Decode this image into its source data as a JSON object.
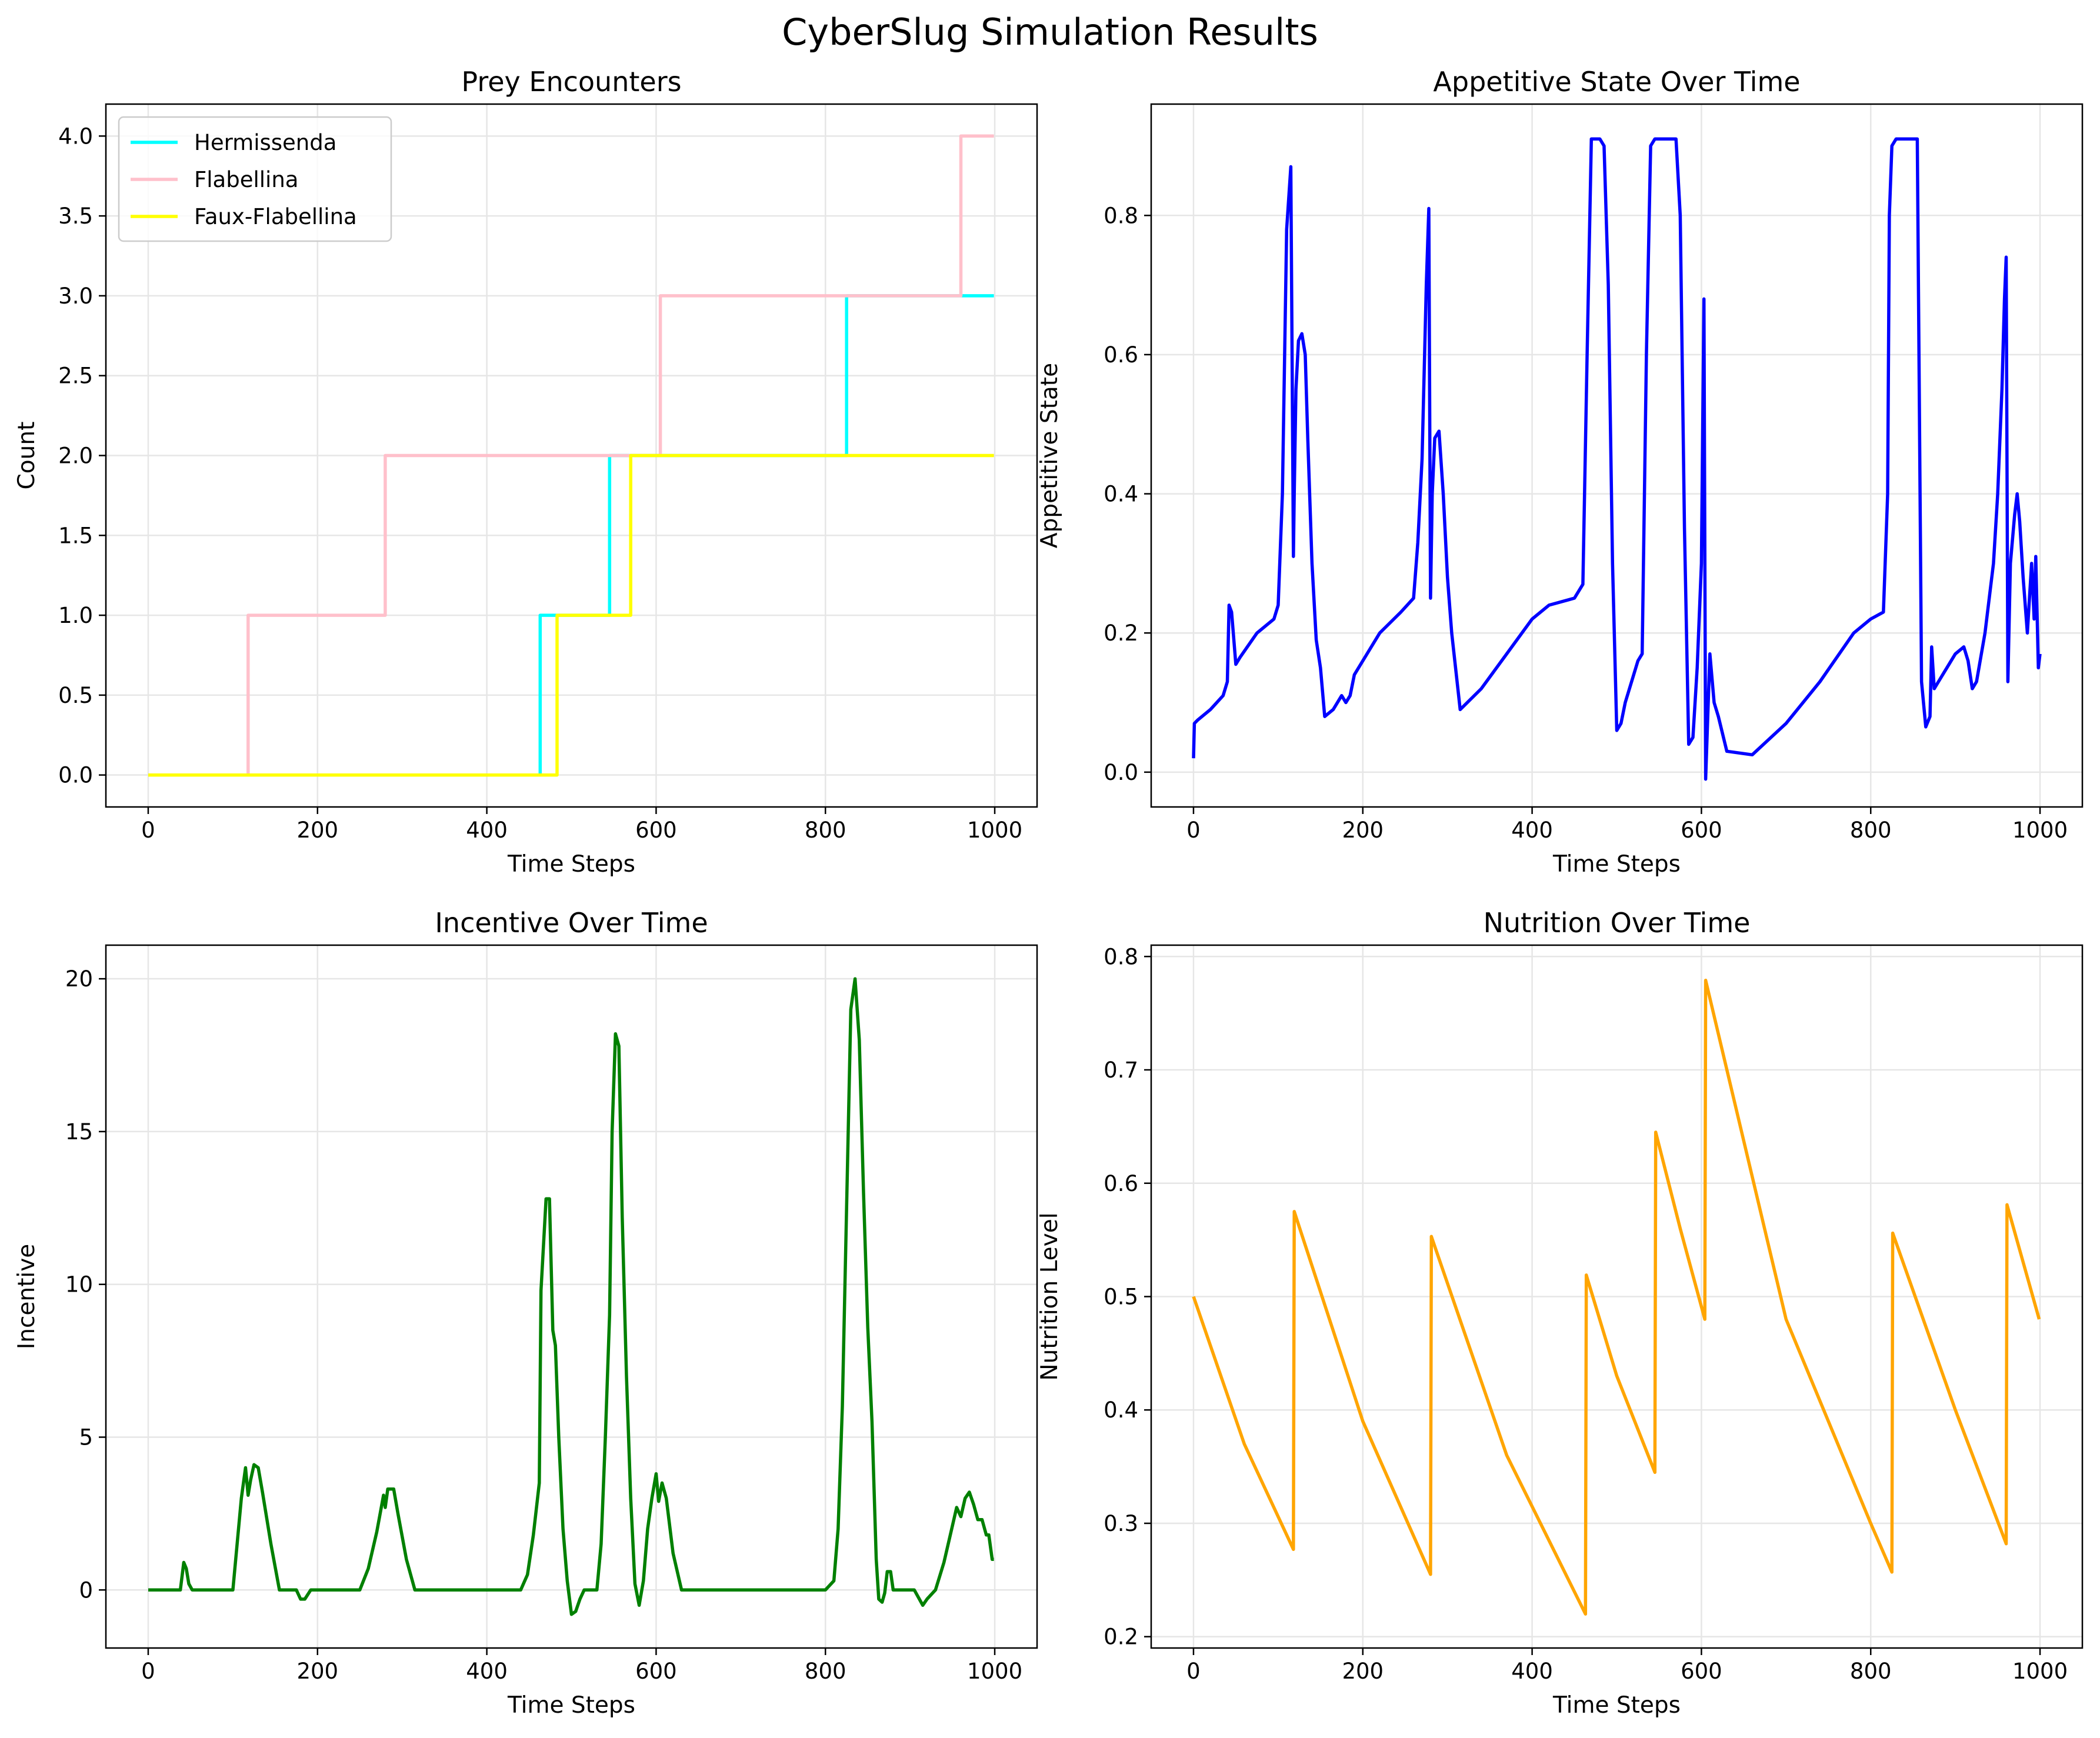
{
  "figure": {
    "title": "CyberSlug Simulation Results"
  },
  "chart_data": [
    {
      "type": "line",
      "title": "Prey Encounters",
      "xlabel": "Time Steps",
      "ylabel": "Count",
      "xlim": [
        -50,
        1050
      ],
      "ylim": [
        -0.2,
        4.2
      ],
      "xticks": [
        0,
        200,
        400,
        600,
        800,
        1000
      ],
      "yticks": [
        0.0,
        0.5,
        1.0,
        1.5,
        2.0,
        2.5,
        3.0,
        3.5,
        4.0
      ],
      "ytick_decimals": 1,
      "grid": true,
      "legend": "top-left",
      "series": [
        {
          "name": "Hermissenda",
          "color": "#00ffff",
          "step": true,
          "x": [
            0,
            463,
            545,
            825,
            999
          ],
          "y": [
            0,
            1,
            2,
            3,
            3
          ]
        },
        {
          "name": "Flabellina",
          "color": "#ffc0cb",
          "step": true,
          "x": [
            0,
            118,
            280,
            605,
            960,
            999
          ],
          "y": [
            0,
            1,
            2,
            3,
            4,
            4
          ]
        },
        {
          "name": "Faux-Flabellina",
          "color": "#ffff00",
          "step": true,
          "x": [
            0,
            483,
            570,
            999
          ],
          "y": [
            0,
            1,
            2,
            2
          ]
        }
      ]
    },
    {
      "type": "line",
      "title": "Appetitive State Over Time",
      "xlabel": "Time Steps",
      "ylabel": "Appetitive State",
      "xlim": [
        -50,
        1050
      ],
      "ylim": [
        -0.05,
        0.96
      ],
      "xticks": [
        0,
        200,
        400,
        600,
        800,
        1000
      ],
      "yticks": [
        0.0,
        0.2,
        0.4,
        0.6,
        0.8
      ],
      "ytick_decimals": 1,
      "grid": true,
      "series": [
        {
          "color": "#0000ff",
          "x": [
            0,
            1,
            5,
            20,
            35,
            40,
            42,
            45,
            47,
            50,
            55,
            75,
            95,
            100,
            105,
            110,
            115,
            118,
            119,
            121,
            124,
            128,
            132,
            135,
            140,
            145,
            150,
            155,
            165,
            175,
            180,
            185,
            190,
            200,
            220,
            245,
            260,
            265,
            270,
            275,
            278,
            280,
            282,
            285,
            290,
            295,
            300,
            305,
            315,
            340,
            370,
            400,
            420,
            450,
            460,
            465,
            470,
            475,
            480,
            485,
            490,
            495,
            500,
            505,
            510,
            525,
            530,
            535,
            540,
            545,
            550,
            560,
            570,
            575,
            580,
            585,
            590,
            595,
            600,
            603,
            605,
            610,
            615,
            620,
            630,
            660,
            700,
            740,
            780,
            800,
            815,
            820,
            822,
            825,
            830,
            835,
            840,
            850,
            855,
            860,
            865,
            870,
            872,
            875,
            880,
            890,
            900,
            910,
            915,
            920,
            925,
            935,
            945,
            950,
            955,
            958,
            960,
            962,
            965,
            970,
            973,
            976,
            980,
            985,
            990,
            993,
            995,
            998,
            1000
          ],
          "y": [
            0.02,
            0.07,
            0.075,
            0.09,
            0.11,
            0.13,
            0.24,
            0.23,
            0.2,
            0.155,
            0.165,
            0.2,
            0.22,
            0.24,
            0.4,
            0.78,
            0.87,
            0.31,
            0.4,
            0.55,
            0.62,
            0.63,
            0.6,
            0.48,
            0.3,
            0.19,
            0.15,
            0.08,
            0.09,
            0.11,
            0.1,
            0.11,
            0.14,
            0.16,
            0.2,
            0.23,
            0.25,
            0.33,
            0.45,
            0.7,
            0.81,
            0.25,
            0.4,
            0.48,
            0.49,
            0.4,
            0.28,
            0.2,
            0.09,
            0.12,
            0.17,
            0.22,
            0.24,
            0.25,
            0.27,
            0.6,
            0.91,
            0.91,
            0.91,
            0.9,
            0.7,
            0.3,
            0.06,
            0.07,
            0.1,
            0.16,
            0.17,
            0.6,
            0.9,
            0.91,
            0.91,
            0.91,
            0.91,
            0.8,
            0.35,
            0.04,
            0.05,
            0.15,
            0.3,
            0.68,
            -0.01,
            0.17,
            0.1,
            0.08,
            0.03,
            0.025,
            0.07,
            0.13,
            0.2,
            0.22,
            0.23,
            0.4,
            0.8,
            0.9,
            0.91,
            0.91,
            0.91,
            0.91,
            0.91,
            0.13,
            0.065,
            0.08,
            0.18,
            0.12,
            0.13,
            0.15,
            0.17,
            0.18,
            0.16,
            0.12,
            0.13,
            0.2,
            0.3,
            0.4,
            0.55,
            0.68,
            0.74,
            0.13,
            0.3,
            0.37,
            0.4,
            0.36,
            0.28,
            0.2,
            0.3,
            0.22,
            0.31,
            0.15,
            0.17
          ]
        }
      ]
    },
    {
      "type": "line",
      "title": "Incentive Over Time",
      "xlabel": "Time Steps",
      "ylabel": "Incentive",
      "xlim": [
        -50,
        1050
      ],
      "ylim": [
        -1.9,
        21.1
      ],
      "xticks": [
        0,
        200,
        400,
        600,
        800,
        1000
      ],
      "yticks": [
        0,
        5,
        10,
        15,
        20
      ],
      "ytick_decimals": 0,
      "grid": true,
      "series": [
        {
          "color": "#008000",
          "x": [
            0,
            38,
            42,
            45,
            48,
            52,
            100,
            105,
            110,
            115,
            118,
            121,
            125,
            130,
            135,
            145,
            155,
            175,
            180,
            185,
            192,
            197,
            250,
            260,
            270,
            278,
            280,
            283,
            290,
            295,
            305,
            315,
            440,
            448,
            455,
            462,
            464,
            470,
            474,
            478,
            481,
            485,
            490,
            495,
            500,
            505,
            510,
            515,
            530,
            535,
            540,
            545,
            548,
            552,
            556,
            560,
            565,
            570,
            575,
            580,
            585,
            590,
            595,
            600,
            603,
            607,
            612,
            620,
            630,
            690,
            800,
            810,
            815,
            820,
            825,
            830,
            835,
            840,
            845,
            850,
            855,
            860,
            863,
            867,
            870,
            873,
            877,
            880,
            885,
            895,
            905,
            915,
            920,
            930,
            940,
            950,
            955,
            960,
            965,
            970,
            975,
            980,
            985,
            990,
            993,
            997,
            999
          ],
          "y": [
            0,
            0,
            0.9,
            0.7,
            0.2,
            0,
            0,
            1.5,
            3.0,
            4.0,
            3.1,
            3.6,
            4.1,
            4.0,
            3.2,
            1.5,
            0,
            0,
            -0.3,
            -0.3,
            0,
            0,
            0,
            0.7,
            1.9,
            3.1,
            2.7,
            3.3,
            3.3,
            2.5,
            1.0,
            0,
            0,
            0.5,
            1.8,
            3.5,
            9.8,
            12.8,
            12.8,
            8.5,
            8.0,
            5.0,
            2.0,
            0.3,
            -0.8,
            -0.7,
            -0.3,
            0,
            0,
            1.5,
            5.0,
            9.0,
            15.0,
            18.2,
            17.8,
            12.2,
            7.0,
            3.0,
            0.2,
            -0.5,
            0.3,
            2.0,
            3.0,
            3.8,
            2.9,
            3.5,
            3.0,
            1.2,
            0,
            0,
            0,
            0.3,
            2.0,
            6.0,
            12.5,
            19.0,
            20.0,
            18.0,
            13.0,
            8.6,
            5.5,
            1.0,
            -0.3,
            -0.4,
            -0.1,
            0.6,
            0.6,
            0,
            0,
            0,
            0,
            -0.5,
            -0.3,
            0,
            0.9,
            2.1,
            2.7,
            2.4,
            3.0,
            3.2,
            2.8,
            2.3,
            2.3,
            1.8,
            1.8,
            1.0,
            1.0
          ]
        }
      ]
    },
    {
      "type": "line",
      "title": "Nutrition Over Time",
      "xlabel": "Time Steps",
      "ylabel": "Nutrition Level",
      "xlim": [
        -50,
        1050
      ],
      "ylim": [
        0.19,
        0.81
      ],
      "xticks": [
        0,
        200,
        400,
        600,
        800,
        1000
      ],
      "yticks": [
        0.2,
        0.3,
        0.4,
        0.5,
        0.6,
        0.7,
        0.8
      ],
      "ytick_decimals": 1,
      "grid": true,
      "series": [
        {
          "color": "#ffa500",
          "x": [
            0,
            60,
            118,
            119,
            200,
            280,
            281,
            370,
            463,
            464,
            500,
            545,
            546,
            575,
            604,
            605,
            700,
            800,
            825,
            826,
            900,
            960,
            961,
            999
          ],
          "y": [
            0.5,
            0.37,
            0.277,
            0.575,
            0.39,
            0.255,
            0.553,
            0.36,
            0.22,
            0.519,
            0.43,
            0.345,
            0.645,
            0.56,
            0.48,
            0.779,
            0.48,
            0.3,
            0.257,
            0.556,
            0.4,
            0.282,
            0.581,
            0.48
          ]
        }
      ]
    }
  ]
}
